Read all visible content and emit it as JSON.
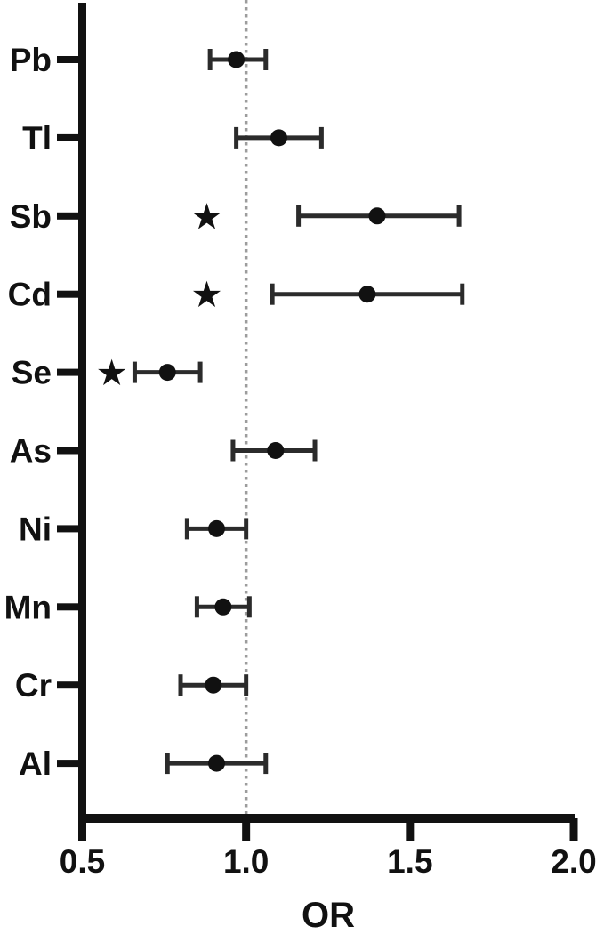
{
  "figure": {
    "background": "#ffffff",
    "axis_color": "#111111",
    "text_color": "#111111",
    "marker_color": "#111111",
    "bar_color": "#2b2b2b",
    "reference_line_color": "#9c9c9c"
  },
  "chart_data": {
    "type": "scatter",
    "subtype": "forest-plot",
    "title": "",
    "xlabel": "OR",
    "ylabel": "",
    "xlim": [
      0.5,
      2.0
    ],
    "x_ticks": [
      0.5,
      1.0,
      1.5,
      2.0
    ],
    "x_tick_labels": [
      "0.5",
      "1.0",
      "1.5",
      "2.0"
    ],
    "reference_line_x": 1.0,
    "grid": false,
    "legend": false,
    "significance_marker": "★",
    "categories": [
      "Pb",
      "Tl",
      "Sb",
      "Cd",
      "Se",
      "As",
      "Ni",
      "Mn",
      "Cr",
      "Al"
    ],
    "points": [
      {
        "label": "Pb",
        "or": 0.97,
        "ci_low": 0.89,
        "ci_high": 1.06,
        "significant": false,
        "star_x": null
      },
      {
        "label": "Tl",
        "or": 1.1,
        "ci_low": 0.97,
        "ci_high": 1.23,
        "significant": false,
        "star_x": null
      },
      {
        "label": "Sb",
        "or": 1.4,
        "ci_low": 1.16,
        "ci_high": 1.65,
        "significant": true,
        "star_x": 0.88
      },
      {
        "label": "Cd",
        "or": 1.37,
        "ci_low": 1.08,
        "ci_high": 1.66,
        "significant": true,
        "star_x": 0.88
      },
      {
        "label": "Se",
        "or": 0.76,
        "ci_low": 0.66,
        "ci_high": 0.86,
        "significant": true,
        "star_x": 0.59
      },
      {
        "label": "As",
        "or": 1.09,
        "ci_low": 0.96,
        "ci_high": 1.21,
        "significant": false,
        "star_x": null
      },
      {
        "label": "Ni",
        "or": 0.91,
        "ci_low": 0.82,
        "ci_high": 1.0,
        "significant": false,
        "star_x": null
      },
      {
        "label": "Mn",
        "or": 0.93,
        "ci_low": 0.85,
        "ci_high": 1.01,
        "significant": false,
        "star_x": null
      },
      {
        "label": "Cr",
        "or": 0.9,
        "ci_low": 0.8,
        "ci_high": 1.0,
        "significant": false,
        "star_x": null
      },
      {
        "label": "Al",
        "or": 0.91,
        "ci_low": 0.76,
        "ci_high": 1.06,
        "significant": false,
        "star_x": null
      }
    ]
  }
}
